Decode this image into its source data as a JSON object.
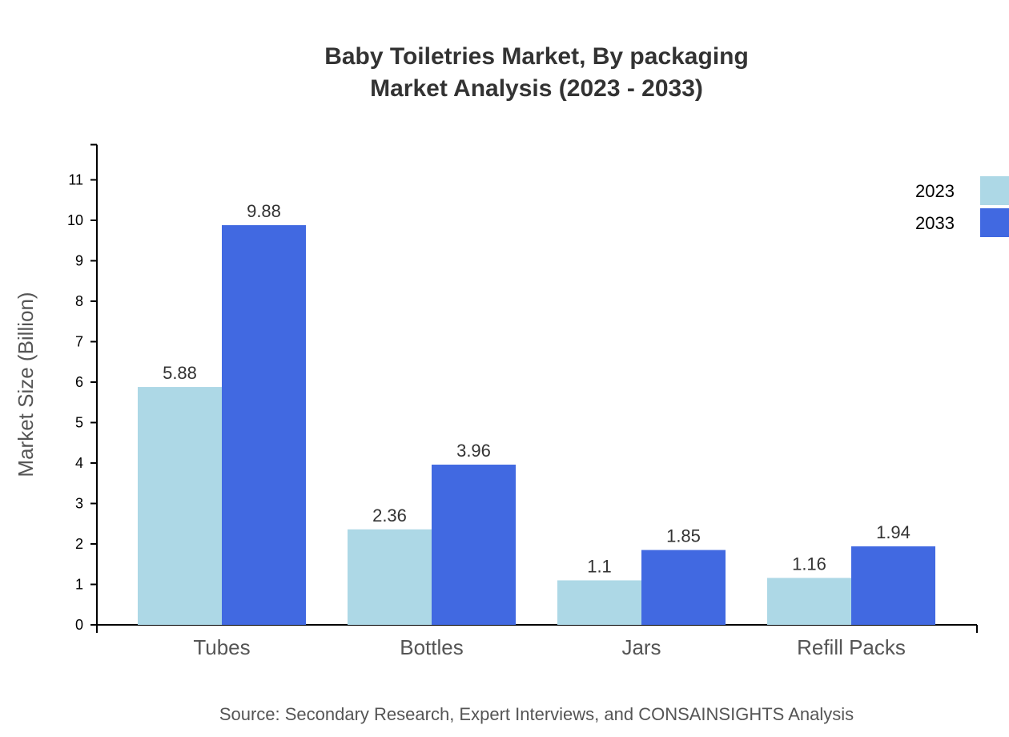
{
  "chart_data": {
    "type": "bar",
    "title": "Baby Toiletries Market, By packaging",
    "subtitle": "Market Analysis (2023 - 2033)",
    "ylabel": "Market Size (Billion)",
    "xlabel": "",
    "categories": [
      "Tubes",
      "Bottles",
      "Jars",
      "Refill Packs"
    ],
    "series": [
      {
        "name": "2023",
        "color": "#ADD8E6",
        "values": [
          5.88,
          2.36,
          1.1,
          1.16
        ]
      },
      {
        "name": "2033",
        "color": "#4169E1",
        "values": [
          9.88,
          3.96,
          1.85,
          1.94
        ]
      }
    ],
    "yticks": [
      "0",
      "1",
      "2",
      "3",
      "4",
      "5",
      "6",
      "7",
      "8",
      "9",
      "10",
      "11"
    ],
    "ylim": [
      0,
      11.87
    ],
    "grid": false,
    "legend": "top-right",
    "source": "Source: Secondary Research, Expert Interviews, and CONSAINSIGHTS Analysis"
  }
}
